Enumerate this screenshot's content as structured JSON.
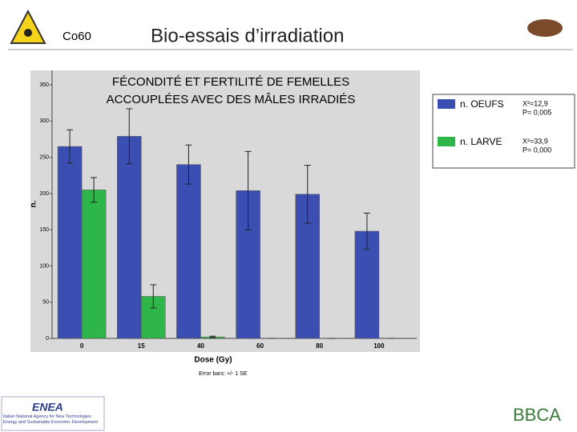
{
  "header": {
    "label": "Co60",
    "title": "Bio-essais d’irradiation"
  },
  "chart_data": {
    "type": "bar",
    "title": [
      "FÉCONDITÉ ET FERTILITÉ DE FEMELLES",
      "ACCOUPLÉES AVEC DES MÂLES IRRADIÉS"
    ],
    "x_label": "Dose (Gy)",
    "y_label": "n.",
    "note": "Error bars: +/- 1 SE",
    "categories": [
      "0",
      "15",
      "40",
      "60",
      "80",
      "100"
    ],
    "series": [
      {
        "name": "n. OEUFS",
        "color": "#3b4fb3",
        "values": [
          265,
          279,
          240,
          204,
          199,
          148
        ],
        "errors": [
          23,
          38,
          27,
          54,
          40,
          25
        ]
      },
      {
        "name": "n. LARVE",
        "color": "#2fb64a",
        "values": [
          205,
          58,
          2,
          0,
          0,
          0
        ],
        "errors": [
          17,
          16,
          1,
          0,
          0,
          0
        ]
      }
    ],
    "ylim": [
      0,
      370
    ],
    "yticks": [
      0,
      50,
      100,
      150,
      200,
      250,
      300,
      350
    ],
    "legend": "right"
  },
  "stats": [
    {
      "chi": "X²=12,9",
      "p": "P= 0,005"
    },
    {
      "chi": "X²=33,9",
      "p": "P= 0,000"
    }
  ],
  "footer": {
    "logo": "ENEA",
    "agency": "Italian National Agency for New Technologies Energy and Sustainable Economic Development",
    "partner": "BBCA"
  }
}
